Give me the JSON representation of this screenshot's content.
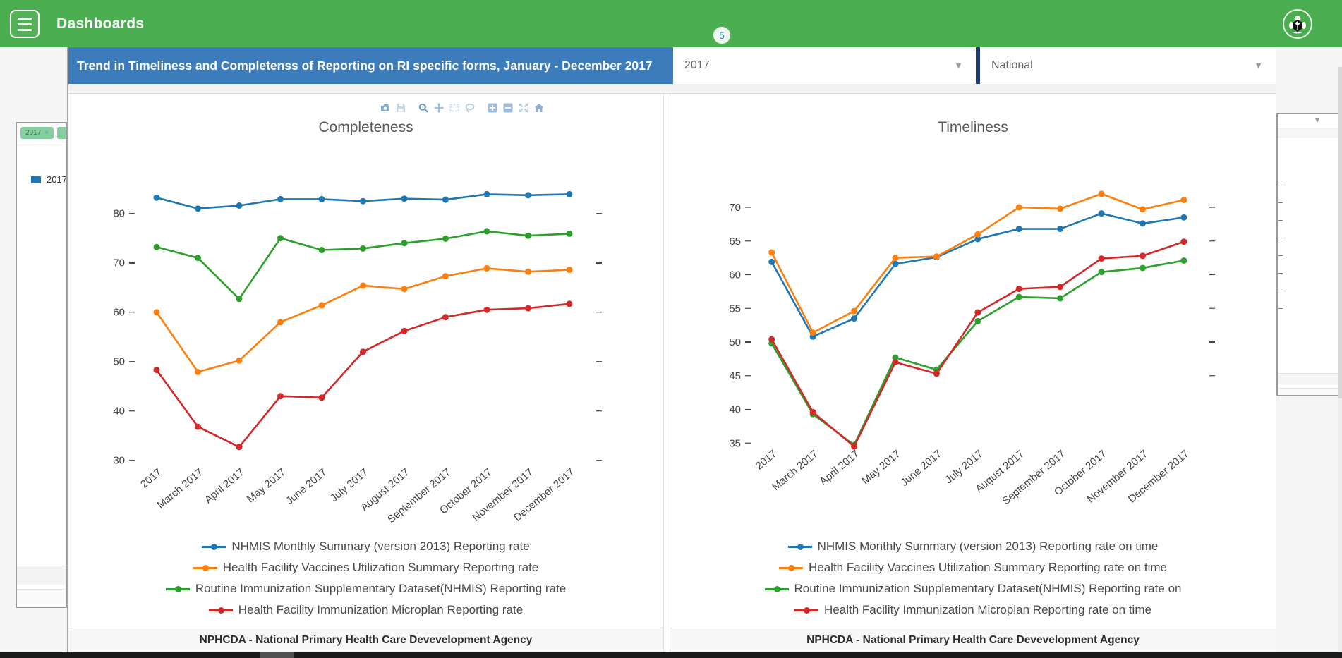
{
  "header": {
    "app_title": "Dashboards",
    "notification_badge": "5"
  },
  "filter_bar": {
    "title": "Trend in Timeliness and Completenss of Reporting on RI specific forms, January - December 2017",
    "period_selected": "2017",
    "orgunit_selected": "National"
  },
  "modebar_icons": [
    "camera",
    "save",
    "zoom",
    "pan",
    "box-select",
    "lasso-select",
    "zoom-in",
    "zoom-out",
    "autoscale",
    "reset-home"
  ],
  "background_left_panel": {
    "filter_chip": "2017",
    "chip_close": "×",
    "legend_label": "2017"
  },
  "chart_data": [
    {
      "type": "line",
      "title": "Completeness",
      "footer": "NPHCDA - National Primary Health Care Devevelopment Agency",
      "grid": false,
      "legend_position": "bottom",
      "ylim": [
        27,
        88
      ],
      "y_ticks": [
        80,
        70,
        60,
        50,
        40,
        30
      ],
      "right_axis_tick_count": 6,
      "bold_tick_value": 70,
      "categories": [
        "2017",
        "March 2017",
        "April 2017",
        "May 2017",
        "June 2017",
        "July 2017",
        "August 2017",
        "September 2017",
        "October 2017",
        "November 2017",
        "December 2017"
      ],
      "series": [
        {
          "name": "NHMIS Monthly Summary (version 2013) Reporting rate",
          "color": "#1f77b4",
          "values": [
            83.2,
            81.0,
            81.6,
            82.9,
            82.9,
            82.5,
            83.0,
            82.8,
            83.9,
            83.7,
            83.9
          ]
        },
        {
          "name": "Health Facility Vaccines Utilization Summary Reporting rate",
          "color": "#ff7f0e",
          "values": [
            60.0,
            47.9,
            50.2,
            58.0,
            61.4,
            65.4,
            64.7,
            67.3,
            68.9,
            68.2,
            68.6
          ]
        },
        {
          "name": "Routine Immunization Supplementary Dataset(NHMIS) Reporting rate",
          "color": "#2ca02c",
          "values": [
            73.2,
            71.0,
            62.7,
            75.0,
            72.6,
            72.9,
            74.0,
            74.9,
            76.4,
            75.5,
            75.9
          ]
        },
        {
          "name": "Health Facility Immunization Microplan Reporting rate",
          "color": "#d62728",
          "values": [
            48.3,
            36.8,
            32.7,
            43.0,
            42.7,
            52.0,
            56.2,
            59.0,
            60.5,
            60.8,
            61.7
          ]
        }
      ]
    },
    {
      "type": "line",
      "title": "Timeliness",
      "footer": "NPHCDA - National Primary Health Care Devevelopment Agency",
      "grid": false,
      "legend_position": "bottom",
      "ylim": [
        33,
        74
      ],
      "y_ticks": [
        70,
        65,
        60,
        55,
        50,
        45,
        40,
        35
      ],
      "right_axis_tick_count": 6,
      "bold_tick_value": 50,
      "categories": [
        "2017",
        "March 2017",
        "April 2017",
        "May 2017",
        "June 2017",
        "July 2017",
        "August 2017",
        "September 2017",
        "October 2017",
        "November 2017",
        "December 2017"
      ],
      "series": [
        {
          "name": "NHMIS Monthly Summary (version 2013) Reporting rate on time",
          "color": "#1f77b4",
          "values": [
            61.9,
            50.8,
            53.5,
            61.6,
            62.6,
            65.3,
            66.8,
            66.8,
            69.1,
            67.6,
            68.5
          ]
        },
        {
          "name": "Health Facility Vaccines Utilization Summary Reporting rate on time",
          "color": "#ff7f0e",
          "values": [
            63.3,
            51.4,
            54.6,
            62.5,
            62.7,
            66.0,
            70.0,
            69.8,
            72.0,
            69.7,
            71.1
          ]
        },
        {
          "name": "Routine Immunization Supplementary Dataset(NHMIS) Reporting rate on",
          "color": "#2ca02c",
          "values": [
            49.8,
            39.3,
            34.7,
            47.7,
            45.9,
            53.1,
            56.7,
            56.5,
            60.4,
            61.0,
            62.1
          ]
        },
        {
          "name": "Health Facility Immunization Microplan Reporting rate on time",
          "color": "#d62728",
          "values": [
            50.4,
            39.6,
            34.5,
            47.0,
            45.3,
            54.4,
            57.9,
            58.2,
            62.4,
            62.8,
            64.9
          ]
        }
      ]
    }
  ]
}
